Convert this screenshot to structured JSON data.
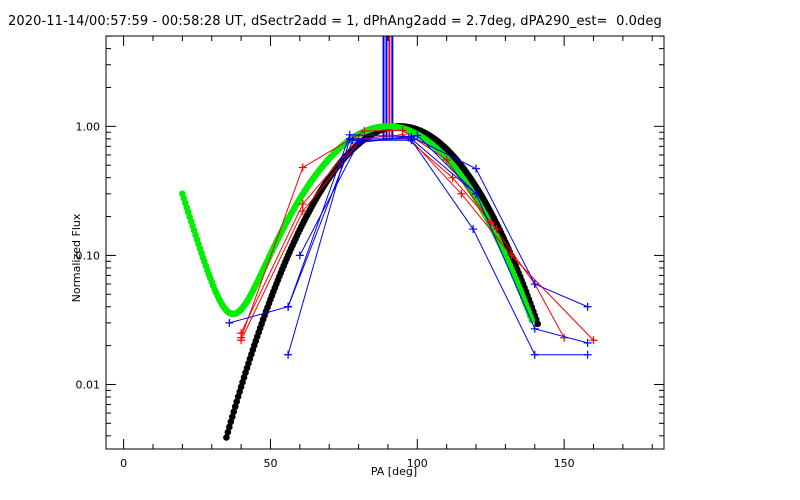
{
  "chart_data": {
    "type": "line",
    "title": "2020-11-14/00:57:59 - 00:58:28 UT, dSectr2add = 1, dPhAng2add = 2.7deg, dPA290_est=  0.0deg",
    "xlabel": "PA [deg]",
    "ylabel": "Normalized Flux",
    "xlim": [
      -6,
      184
    ],
    "ylim_log10": [
      -2.5,
      0.7
    ],
    "yscale": "log",
    "xticks": [
      0,
      50,
      100,
      150
    ],
    "xtick_labels": [
      "0",
      "50",
      "100",
      "150"
    ],
    "yticks": [
      0.01,
      0.1,
      1.0
    ],
    "ytick_labels": [
      "0.01",
      "0.10",
      "1.00"
    ],
    "markers_top": [
      {
        "x": 88.5,
        "color": "#0000ff"
      },
      {
        "x": 89.5,
        "color": "#0000ff"
      },
      {
        "x": 90.5,
        "color": "#ff0000"
      },
      {
        "x": 91.5,
        "color": "#0000ff"
      }
    ],
    "series": [
      {
        "name": "red-1",
        "color": "#ff0000",
        "marker": "+",
        "x": [
          40,
          61,
          82,
          95,
          110,
          125,
          140,
          150
        ],
        "y": [
          0.023,
          0.48,
          0.92,
          0.93,
          0.55,
          0.18,
          0.06,
          0.023
        ]
      },
      {
        "name": "red-2",
        "color": "#ff0000",
        "marker": "+",
        "x": [
          40,
          61,
          80,
          95,
          112,
          127
        ],
        "y": [
          0.025,
          0.25,
          0.8,
          0.86,
          0.4,
          0.16
        ]
      },
      {
        "name": "red-3",
        "color": "#ff0000",
        "marker": "+",
        "x": [
          40,
          61,
          80,
          97,
          115,
          132,
          160
        ],
        "y": [
          0.022,
          0.22,
          0.75,
          0.82,
          0.3,
          0.1,
          0.022
        ]
      },
      {
        "name": "blue-1",
        "color": "#0000ff",
        "marker": "+",
        "x": [
          36,
          56,
          77,
          98,
          120,
          140,
          158
        ],
        "y": [
          0.03,
          0.04,
          0.86,
          0.83,
          0.47,
          0.06,
          0.04
        ]
      },
      {
        "name": "blue-2",
        "color": "#0000ff",
        "marker": "+",
        "x": [
          56,
          77,
          98,
          120,
          140,
          158
        ],
        "y": [
          0.017,
          0.8,
          0.8,
          0.3,
          0.027,
          0.021
        ]
      },
      {
        "name": "blue-3",
        "color": "#0000ff",
        "marker": "+",
        "x": [
          56,
          78,
          98,
          119,
          140,
          158
        ],
        "y": [
          0.04,
          0.78,
          0.78,
          0.16,
          0.017,
          0.017
        ]
      },
      {
        "name": "blue-4",
        "color": "#0000ff",
        "marker": "+",
        "x": [
          60,
          80,
          100,
          120
        ],
        "y": [
          0.1,
          0.75,
          0.85,
          0.3
        ]
      }
    ],
    "model_curves": [
      {
        "name": "green-model",
        "color": "#00ee00",
        "x_range": [
          20,
          139
        ],
        "peak_x": 90,
        "note": "dotted thick curve, min ~0.031 near x=38"
      },
      {
        "name": "black-model",
        "color": "#000000",
        "x_range": [
          35,
          141
        ],
        "peak_x": 94,
        "note": "dotted thick gaussian-like curve"
      }
    ]
  }
}
